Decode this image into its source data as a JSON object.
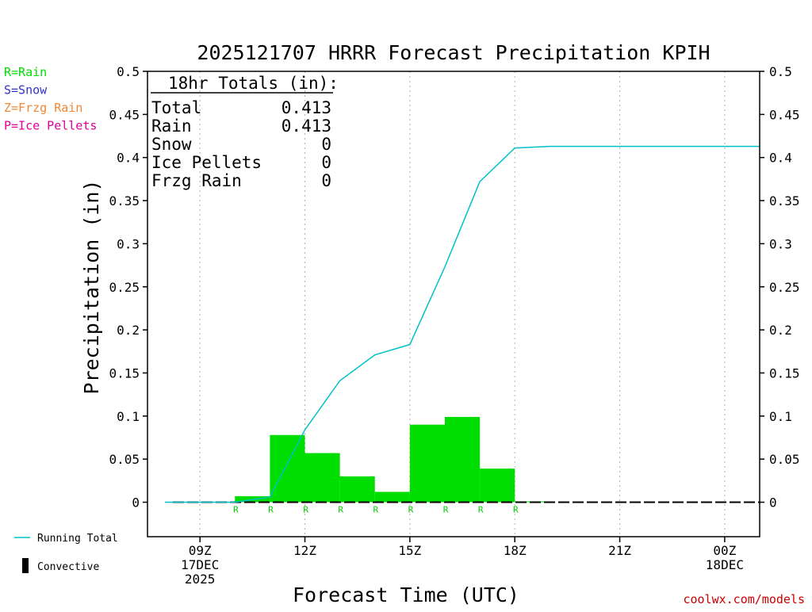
{
  "chart_data": {
    "type": "bar",
    "title": "2025121707 HRRR Forecast Precipitation KPIH",
    "xlabel": "Forecast Time (UTC)",
    "ylabel": "Precipitation (in)",
    "ylim": [
      -0.04,
      0.5
    ],
    "yticks": [
      0,
      0.05,
      0.1,
      0.15,
      0.2,
      0.25,
      0.3,
      0.35,
      0.4,
      0.45,
      0.5
    ],
    "ytick_labels": [
      "0",
      "0.05",
      "0.1",
      "0.15",
      "0.2",
      "0.25",
      "0.3",
      "0.35",
      "0.4",
      "0.45",
      "0.5"
    ],
    "x_range_hours": [
      7.5,
      25
    ],
    "x_ticks": [
      {
        "hour": 9,
        "lines": [
          "09Z",
          "17DEC",
          "2025"
        ]
      },
      {
        "hour": 12,
        "lines": [
          "12Z"
        ]
      },
      {
        "hour": 15,
        "lines": [
          "15Z"
        ]
      },
      {
        "hour": 18,
        "lines": [
          "18Z"
        ]
      },
      {
        "hour": 21,
        "lines": [
          "21Z"
        ]
      },
      {
        "hour": 24,
        "lines": [
          "00Z",
          "18DEC"
        ]
      }
    ],
    "hours": [
      8,
      9,
      10,
      11,
      12,
      13,
      14,
      15,
      16,
      17,
      18,
      19,
      20,
      21,
      22,
      23,
      24,
      25
    ],
    "series": [
      {
        "name": "Rain",
        "kind": "bar",
        "color": "#00dd00",
        "values": [
          0,
          0,
          0,
          0.007,
          0.078,
          0.057,
          0.03,
          0.012,
          0.09,
          0.099,
          0.039,
          0.001,
          0,
          0,
          0,
          0,
          0,
          0
        ]
      },
      {
        "name": "Running Total",
        "kind": "line",
        "color": "#00c0c8",
        "values": [
          0,
          0,
          0,
          0.006,
          0.084,
          0.141,
          0.171,
          0.183,
          0.273,
          0.372,
          0.411,
          0.413,
          0.413,
          0.413,
          0.413,
          0.413,
          0.413,
          0.413
        ]
      }
    ],
    "precip_type_markers": {
      "hours": [
        11,
        12,
        13,
        14,
        15,
        16,
        17,
        18,
        19
      ],
      "label": "R",
      "color": "#00cc00"
    },
    "totals_box": {
      "header": "18hr Totals (in):",
      "rows": [
        {
          "label": "Total",
          "value": "0.413"
        },
        {
          "label": "Rain",
          "value": "0.413"
        },
        {
          "label": "Snow",
          "value": "0"
        },
        {
          "label": "Ice Pellets",
          "value": "0"
        },
        {
          "label": "Frzg Rain",
          "value": "0"
        }
      ]
    },
    "type_legend": [
      {
        "text": "R=Rain",
        "color": "#00dd00"
      },
      {
        "text": "S=Snow",
        "color": "#3333cc"
      },
      {
        "text": "Z=Frzg Rain",
        "color": "#ee8833"
      },
      {
        "text": "P=Ice Pellets",
        "color": "#dd0099"
      }
    ],
    "series_legend": [
      {
        "text": "Running Total",
        "symbol": "line",
        "color": "#00c0c8"
      },
      {
        "text": "Convective",
        "symbol": "bar",
        "color": "#000000"
      }
    ],
    "credit": {
      "text": "coolwx.com/models",
      "color": "#cc0000"
    },
    "grid": {
      "vertical_dotted": true,
      "horizontal": false
    }
  }
}
